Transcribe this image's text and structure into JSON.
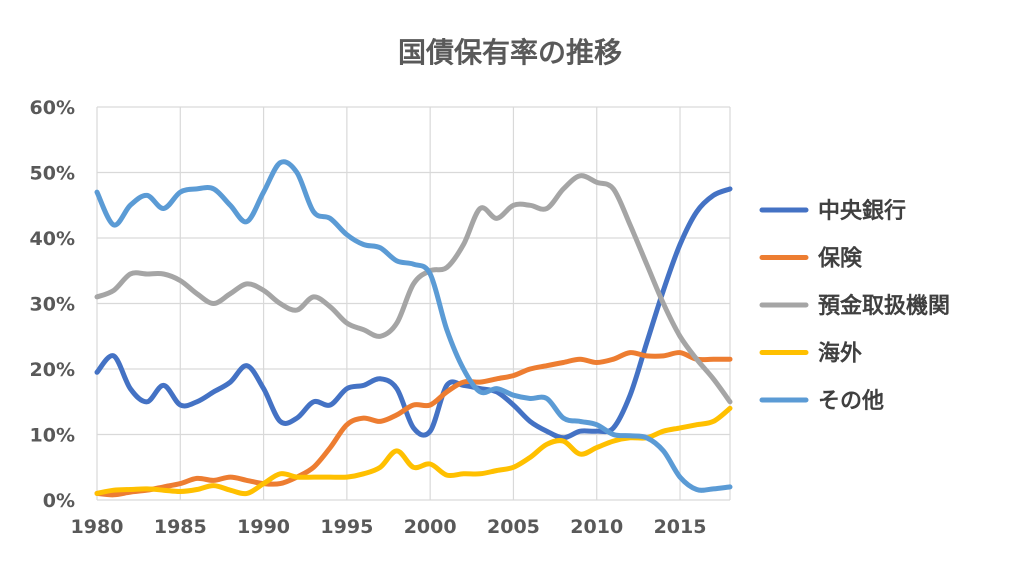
{
  "chart_data": {
    "type": "line",
    "title": "国債保有率の推移",
    "xlabel": "",
    "ylabel": "",
    "xlim": [
      1980,
      2018
    ],
    "ylim": [
      0,
      60
    ],
    "x_ticks": [
      "1980",
      "1985",
      "1990",
      "1995",
      "2000",
      "2005",
      "2010",
      "2015"
    ],
    "y_ticks": [
      "0%",
      "10%",
      "20%",
      "30%",
      "40%",
      "50%",
      "60%"
    ],
    "grid": true,
    "legend_position": "right",
    "x": [
      1980,
      1981,
      1982,
      1983,
      1984,
      1985,
      1986,
      1987,
      1988,
      1989,
      1990,
      1991,
      1992,
      1993,
      1994,
      1995,
      1996,
      1997,
      1998,
      1999,
      2000,
      2001,
      2002,
      2003,
      2004,
      2005,
      2006,
      2007,
      2008,
      2009,
      2010,
      2011,
      2012,
      2013,
      2014,
      2015,
      2016,
      2017,
      2018
    ],
    "series": [
      {
        "name": "中央銀行",
        "color": "#4472C4",
        "values": [
          19.5,
          22,
          17,
          15,
          17.5,
          14.5,
          15,
          16.5,
          18,
          20.5,
          17,
          12,
          12.5,
          15,
          14.5,
          17,
          17.5,
          18.5,
          17,
          11,
          10.5,
          17.5,
          17.5,
          17,
          16.5,
          14.5,
          12,
          10.5,
          9.5,
          10.5,
          10.5,
          11,
          16,
          24,
          32,
          39,
          44,
          46.5,
          47.5
        ]
      },
      {
        "name": "保険",
        "color": "#ED7D31",
        "values": [
          1,
          0.8,
          1.2,
          1.5,
          2,
          2.5,
          3.3,
          3,
          3.5,
          3,
          2.5,
          2.5,
          3.5,
          5,
          8,
          11.5,
          12.5,
          12,
          13,
          14.5,
          14.5,
          16.5,
          18,
          18,
          18.5,
          19,
          20,
          20.5,
          21,
          21.5,
          21,
          21.5,
          22.5,
          22,
          22,
          22.5,
          21.5,
          21.5,
          21.5
        ]
      },
      {
        "name": "預金取扱機関",
        "color": "#A5A5A5",
        "values": [
          31,
          32,
          34.5,
          34.5,
          34.5,
          33.5,
          31.5,
          30,
          31.5,
          33,
          32,
          30,
          29,
          31,
          29.5,
          27,
          26,
          25,
          27,
          33,
          35,
          35.5,
          39,
          44.5,
          43,
          45,
          45,
          44.5,
          47.5,
          49.5,
          48.5,
          47.5,
          42,
          36,
          30,
          25,
          21.5,
          18.5,
          15
        ]
      },
      {
        "name": "海外",
        "color": "#FFC000",
        "values": [
          1,
          1.5,
          1.6,
          1.7,
          1.5,
          1.3,
          1.6,
          2.2,
          1.5,
          1,
          2.5,
          4,
          3.5,
          3.5,
          3.5,
          3.5,
          4,
          5,
          7.5,
          5,
          5.5,
          3.8,
          4,
          4,
          4.5,
          5,
          6.5,
          8.5,
          9,
          7,
          8,
          9,
          9.5,
          9.5,
          10.5,
          11,
          11.5,
          12,
          14
        ]
      },
      {
        "name": "その他",
        "color": "#5B9BD5",
        "values": [
          47,
          42,
          45,
          46.5,
          44.5,
          47,
          47.5,
          47.5,
          45,
          42.5,
          47,
          51.5,
          50,
          44,
          43,
          40.5,
          39,
          38.5,
          36.5,
          36,
          34.5,
          26,
          20,
          16.5,
          17,
          16,
          15.5,
          15.5,
          12.5,
          12,
          11.5,
          10,
          9.8,
          9.5,
          7.5,
          3.5,
          1.6,
          1.7,
          2
        ]
      }
    ]
  }
}
